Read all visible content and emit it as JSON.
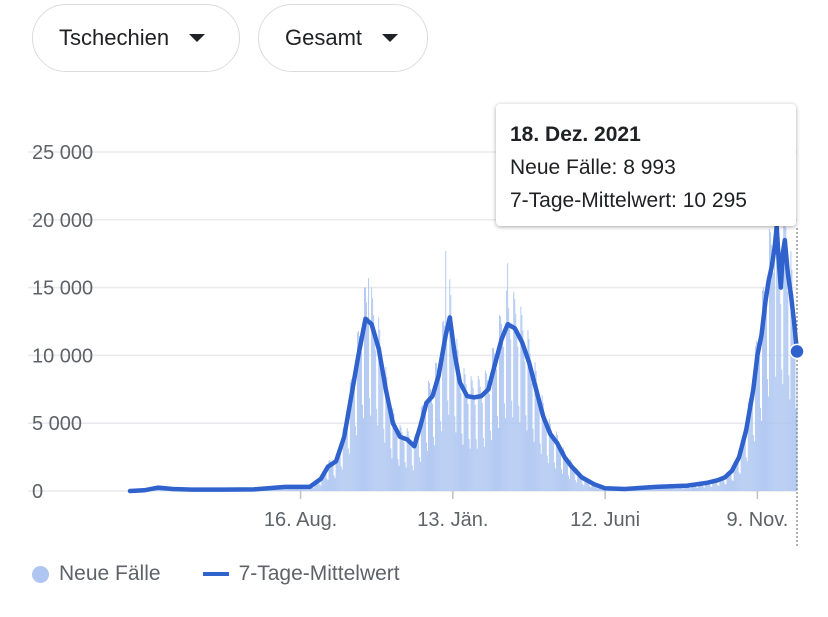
{
  "filters": {
    "country": "Tschechien",
    "metric": "Gesamt"
  },
  "tooltip": {
    "date": "18. Dez. 2021",
    "cases_label": "Neue Fälle: 8 993",
    "avg_label": "7-Tage-Mittelwert: 10 295"
  },
  "legend": {
    "cases": "Neue Fälle",
    "avg": "7-Tage-Mittelwert"
  },
  "colors": {
    "bars": "#aec6f1",
    "line": "#2f62cc",
    "grid": "#e8eaed",
    "text": "#5f6368"
  },
  "chart_data": {
    "type": "bar",
    "title": "",
    "xlabel": "",
    "ylabel": "",
    "ylim": [
      0,
      25000
    ],
    "yticks": [
      0,
      5000,
      10000,
      15000,
      20000,
      25000
    ],
    "ytick_labels": [
      "0",
      "5 000",
      "10 000",
      "15 000",
      "20 000",
      "25 000"
    ],
    "xlim": [
      "2020-03-01",
      "2021-12-18"
    ],
    "xticks": [
      "2020-08-16",
      "2021-01-13",
      "2021-06-12",
      "2021-11-09"
    ],
    "xtick_labels": [
      "16. Aug.",
      "13. Jän.",
      "12. Juni",
      "9. Nov."
    ],
    "grid": true,
    "legend_position": "bottom-left",
    "series": [
      {
        "name": "7-Tage-Mittelwert",
        "style": "line",
        "x": [
          "2020-03-01",
          "2020-03-15",
          "2020-03-29",
          "2020-04-12",
          "2020-05-01",
          "2020-06-01",
          "2020-07-01",
          "2020-08-01",
          "2020-08-16",
          "2020-08-25",
          "2020-09-05",
          "2020-09-12",
          "2020-09-20",
          "2020-09-28",
          "2020-10-05",
          "2020-10-12",
          "2020-10-19",
          "2020-10-25",
          "2020-11-01",
          "2020-11-08",
          "2020-11-15",
          "2020-11-22",
          "2020-11-29",
          "2020-12-06",
          "2020-12-12",
          "2020-12-18",
          "2020-12-24",
          "2020-12-30",
          "2021-01-06",
          "2021-01-10",
          "2021-01-15",
          "2021-01-20",
          "2021-01-27",
          "2021-02-03",
          "2021-02-10",
          "2021-02-17",
          "2021-02-24",
          "2021-03-02",
          "2021-03-08",
          "2021-03-15",
          "2021-03-22",
          "2021-03-29",
          "2021-04-05",
          "2021-04-12",
          "2021-04-19",
          "2021-04-26",
          "2021-05-03",
          "2021-05-10",
          "2021-05-20",
          "2021-06-01",
          "2021-06-12",
          "2021-07-01",
          "2021-08-01",
          "2021-09-01",
          "2021-09-20",
          "2021-10-01",
          "2021-10-08",
          "2021-10-15",
          "2021-10-22",
          "2021-10-29",
          "2021-11-05",
          "2021-11-09",
          "2021-11-13",
          "2021-11-17",
          "2021-11-20",
          "2021-11-23",
          "2021-11-26",
          "2021-11-28",
          "2021-11-30",
          "2021-12-02",
          "2021-12-04",
          "2021-12-06",
          "2021-12-09",
          "2021-12-12",
          "2021-12-15",
          "2021-12-18"
        ],
        "values": [
          0,
          50,
          250,
          150,
          100,
          100,
          120,
          300,
          300,
          300,
          900,
          1800,
          2200,
          4000,
          7000,
          10000,
          12700,
          12300,
          10500,
          7500,
          5000,
          4000,
          3800,
          3300,
          4800,
          6500,
          7000,
          8500,
          11500,
          12800,
          10000,
          8000,
          7000,
          6900,
          7000,
          7500,
          9500,
          11200,
          12300,
          12000,
          11000,
          9500,
          7500,
          5500,
          4200,
          3500,
          2500,
          1800,
          1000,
          500,
          200,
          150,
          300,
          400,
          600,
          800,
          1000,
          1500,
          2500,
          4500,
          7500,
          10000,
          11500,
          14000,
          15500,
          16500,
          18000,
          19500,
          17000,
          15000,
          17500,
          18500,
          16000,
          14500,
          12500,
          10295
        ]
      },
      {
        "name": "Neue Fälle",
        "style": "bars",
        "note": "daily values, highest spikes near each wave peak",
        "peaks": [
          {
            "x": "2020-10-22",
            "value": 15700
          },
          {
            "x": "2021-01-06",
            "value": 17700
          },
          {
            "x": "2021-03-08",
            "value": 16800
          },
          {
            "x": "2021-11-26",
            "value": 20500
          }
        ],
        "last": {
          "x": "2021-12-18",
          "value": 8993
        }
      }
    ]
  }
}
